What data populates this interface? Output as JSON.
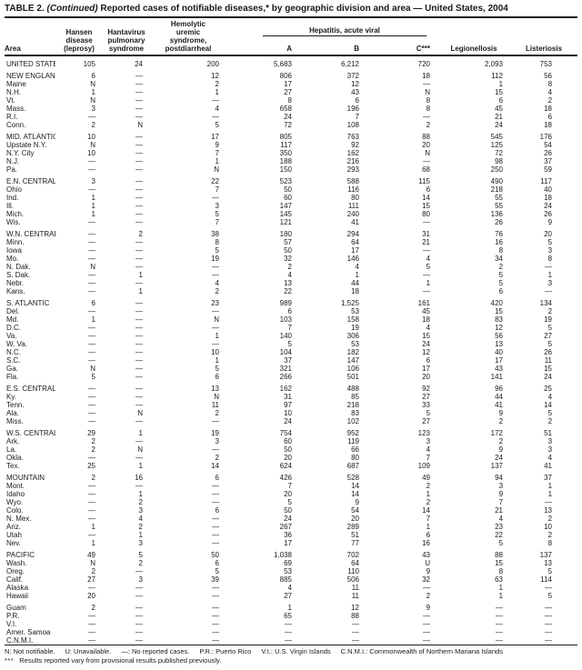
{
  "title": {
    "prefix": "TABLE 2.",
    "continued": "(Continued)",
    "rest": "Reported cases of notifiable diseases,* by geographic division and area — United States, 2004"
  },
  "header": {
    "area": "Area",
    "hansen": "Hansen disease (leprosy)",
    "hantavirus": "Hantavirus pulmonary syndrome",
    "hus": "Hemolytic uremic syndrome, postdiarrheal",
    "hepatitis_group": "Hepatitis, acute viral",
    "hep_a": "A",
    "hep_b": "B",
    "hep_c": "C***",
    "legionellosis": "Legionellosis",
    "listeriosis": "Listeriosis"
  },
  "sections": [
    {
      "rows": [
        {
          "area": "UNITED STATES",
          "values": [
            "105",
            "24",
            "200",
            "5,683",
            "6,212",
            "720",
            "2,093",
            "753"
          ]
        }
      ]
    },
    {
      "rows": [
        {
          "area": "NEW ENGLAND",
          "values": [
            "6",
            "—",
            "12",
            "806",
            "372",
            "18",
            "112",
            "56"
          ]
        },
        {
          "area": "Maine",
          "values": [
            "N",
            "—",
            "2",
            "17",
            "12",
            "—",
            "1",
            "8"
          ]
        },
        {
          "area": "N.H.",
          "values": [
            "1",
            "—",
            "1",
            "27",
            "43",
            "N",
            "15",
            "4"
          ]
        },
        {
          "area": "Vt.",
          "values": [
            "N",
            "—",
            "—",
            "8",
            "6",
            "8",
            "6",
            "2"
          ]
        },
        {
          "area": "Mass.",
          "values": [
            "3",
            "—",
            "4",
            "658",
            "196",
            "8",
            "45",
            "18"
          ]
        },
        {
          "area": "R.I.",
          "values": [
            "—",
            "—",
            "—",
            "24",
            "7",
            "—",
            "21",
            "6"
          ]
        },
        {
          "area": "Conn.",
          "values": [
            "2",
            "N",
            "5",
            "72",
            "108",
            "2",
            "24",
            "18"
          ]
        }
      ]
    },
    {
      "rows": [
        {
          "area": "MID. ATLANTIC",
          "values": [
            "10",
            "—",
            "17",
            "805",
            "763",
            "88",
            "545",
            "176"
          ]
        },
        {
          "area": "Upstate N.Y.",
          "values": [
            "N",
            "—",
            "9",
            "117",
            "92",
            "20",
            "125",
            "54"
          ]
        },
        {
          "area": "N.Y. City",
          "values": [
            "10",
            "—",
            "7",
            "350",
            "162",
            "N",
            "72",
            "26"
          ]
        },
        {
          "area": "N.J.",
          "values": [
            "—",
            "—",
            "1",
            "188",
            "216",
            "—",
            "98",
            "37"
          ]
        },
        {
          "area": "Pa.",
          "values": [
            "—",
            "—",
            "N",
            "150",
            "293",
            "68",
            "250",
            "59"
          ]
        }
      ]
    },
    {
      "rows": [
        {
          "area": "E.N. CENTRAL",
          "values": [
            "3",
            "—",
            "22",
            "523",
            "588",
            "115",
            "490",
            "117"
          ]
        },
        {
          "area": "Ohio",
          "values": [
            "—",
            "—",
            "7",
            "50",
            "116",
            "6",
            "218",
            "40"
          ]
        },
        {
          "area": "Ind.",
          "values": [
            "1",
            "—",
            "—",
            "60",
            "80",
            "14",
            "55",
            "18"
          ]
        },
        {
          "area": "Ill.",
          "values": [
            "1",
            "—",
            "3",
            "147",
            "111",
            "15",
            "55",
            "24"
          ]
        },
        {
          "area": "Mich.",
          "values": [
            "1",
            "—",
            "5",
            "145",
            "240",
            "80",
            "136",
            "26"
          ]
        },
        {
          "area": "Wis.",
          "values": [
            "—",
            "—",
            "7",
            "121",
            "41",
            "—",
            "26",
            "9"
          ]
        }
      ]
    },
    {
      "rows": [
        {
          "area": "W.N. CENTRAL",
          "values": [
            "—",
            "2",
            "38",
            "180",
            "294",
            "31",
            "76",
            "20"
          ]
        },
        {
          "area": "Minn.",
          "values": [
            "—",
            "—",
            "8",
            "57",
            "64",
            "21",
            "16",
            "5"
          ]
        },
        {
          "area": "Iowa",
          "values": [
            "—",
            "—",
            "5",
            "50",
            "17",
            "—",
            "8",
            "3"
          ]
        },
        {
          "area": "Mo.",
          "values": [
            "—",
            "—",
            "19",
            "32",
            "146",
            "4",
            "34",
            "8"
          ]
        },
        {
          "area": "N. Dak.",
          "values": [
            "N",
            "—",
            "—",
            "2",
            "4",
            "5",
            "2",
            "—"
          ]
        },
        {
          "area": "S. Dak.",
          "values": [
            "—",
            "1",
            "—",
            "4",
            "1",
            "—",
            "5",
            "1"
          ]
        },
        {
          "area": "Nebr.",
          "values": [
            "—",
            "—",
            "4",
            "13",
            "44",
            "1",
            "5",
            "3"
          ]
        },
        {
          "area": "Kans.",
          "values": [
            "—",
            "1",
            "2",
            "22",
            "18",
            "—",
            "6",
            "—"
          ]
        }
      ]
    },
    {
      "rows": [
        {
          "area": "S. ATLANTIC",
          "values": [
            "6",
            "—",
            "23",
            "989",
            "1,525",
            "161",
            "420",
            "134"
          ]
        },
        {
          "area": "Del.",
          "values": [
            "—",
            "—",
            "—",
            "6",
            "53",
            "45",
            "15",
            "2"
          ]
        },
        {
          "area": "Md.",
          "values": [
            "1",
            "—",
            "N",
            "103",
            "158",
            "18",
            "83",
            "19"
          ]
        },
        {
          "area": "D.C.",
          "values": [
            "—",
            "—",
            "—",
            "7",
            "19",
            "4",
            "12",
            "5"
          ]
        },
        {
          "area": "Va.",
          "values": [
            "—",
            "—",
            "1",
            "140",
            "306",
            "15",
            "56",
            "27"
          ]
        },
        {
          "area": "W. Va.",
          "values": [
            "—",
            "—",
            "—",
            "5",
            "53",
            "24",
            "13",
            "5"
          ]
        },
        {
          "area": "N.C.",
          "values": [
            "—",
            "—",
            "10",
            "104",
            "182",
            "12",
            "40",
            "26"
          ]
        },
        {
          "area": "S.C.",
          "values": [
            "—",
            "—",
            "1",
            "37",
            "147",
            "6",
            "17",
            "11"
          ]
        },
        {
          "area": "Ga.",
          "values": [
            "N",
            "—",
            "5",
            "321",
            "106",
            "17",
            "43",
            "15"
          ]
        },
        {
          "area": "Fla.",
          "values": [
            "5",
            "—",
            "6",
            "266",
            "501",
            "20",
            "141",
            "24"
          ]
        }
      ]
    },
    {
      "rows": [
        {
          "area": "E.S. CENTRAL",
          "values": [
            "—",
            "—",
            "13",
            "162",
            "488",
            "92",
            "96",
            "25"
          ]
        },
        {
          "area": "Ky.",
          "values": [
            "—",
            "—",
            "N",
            "31",
            "85",
            "27",
            "44",
            "4"
          ]
        },
        {
          "area": "Tenn.",
          "values": [
            "—",
            "—",
            "11",
            "97",
            "218",
            "33",
            "41",
            "14"
          ]
        },
        {
          "area": "Ala.",
          "values": [
            "—",
            "N",
            "2",
            "10",
            "83",
            "5",
            "9",
            "5"
          ]
        },
        {
          "area": "Miss.",
          "values": [
            "—",
            "—",
            "—",
            "24",
            "102",
            "27",
            "2",
            "2"
          ]
        }
      ]
    },
    {
      "rows": [
        {
          "area": "W.S. CENTRAL",
          "values": [
            "29",
            "1",
            "19",
            "754",
            "952",
            "123",
            "172",
            "51"
          ]
        },
        {
          "area": "Ark.",
          "values": [
            "2",
            "—",
            "3",
            "60",
            "119",
            "3",
            "2",
            "3"
          ]
        },
        {
          "area": "La.",
          "values": [
            "2",
            "N",
            "—",
            "50",
            "66",
            "4",
            "9",
            "3"
          ]
        },
        {
          "area": "Okla.",
          "values": [
            "—",
            "—",
            "2",
            "20",
            "80",
            "7",
            "24",
            "4"
          ]
        },
        {
          "area": "Tex.",
          "values": [
            "25",
            "1",
            "14",
            "624",
            "687",
            "109",
            "137",
            "41"
          ]
        }
      ]
    },
    {
      "rows": [
        {
          "area": "MOUNTAIN",
          "values": [
            "2",
            "16",
            "6",
            "426",
            "528",
            "49",
            "94",
            "37"
          ]
        },
        {
          "area": "Mont.",
          "values": [
            "—",
            "—",
            "—",
            "7",
            "14",
            "2",
            "3",
            "1"
          ]
        },
        {
          "area": "Idaho",
          "values": [
            "—",
            "1",
            "—",
            "20",
            "14",
            "1",
            "9",
            "1"
          ]
        },
        {
          "area": "Wyo.",
          "values": [
            "—",
            "2",
            "—",
            "5",
            "9",
            "2",
            "7",
            "—"
          ]
        },
        {
          "area": "Colo.",
          "values": [
            "—",
            "3",
            "6",
            "50",
            "54",
            "14",
            "21",
            "13"
          ]
        },
        {
          "area": "N. Mex.",
          "values": [
            "—",
            "4",
            "—",
            "24",
            "20",
            "7",
            "4",
            "2"
          ]
        },
        {
          "area": "Ariz.",
          "values": [
            "1",
            "2",
            "—",
            "267",
            "289",
            "1",
            "23",
            "10"
          ]
        },
        {
          "area": "Utah",
          "values": [
            "—",
            "1",
            "—",
            "36",
            "51",
            "6",
            "22",
            "2"
          ]
        },
        {
          "area": "Nev.",
          "values": [
            "1",
            "3",
            "—",
            "17",
            "77",
            "16",
            "5",
            "8"
          ]
        }
      ]
    },
    {
      "rows": [
        {
          "area": "PACIFIC",
          "values": [
            "49",
            "5",
            "50",
            "1,038",
            "702",
            "43",
            "88",
            "137"
          ]
        },
        {
          "area": "Wash.",
          "values": [
            "N",
            "2",
            "6",
            "69",
            "64",
            "U",
            "15",
            "13"
          ]
        },
        {
          "area": "Oreg.",
          "values": [
            "2",
            "—",
            "5",
            "53",
            "110",
            "9",
            "8",
            "5"
          ]
        },
        {
          "area": "Calif.",
          "values": [
            "27",
            "3",
            "39",
            "885",
            "506",
            "32",
            "63",
            "114"
          ]
        },
        {
          "area": "Alaska",
          "values": [
            "—",
            "—",
            "—",
            "4",
            "11",
            "—",
            "1",
            "—"
          ]
        },
        {
          "area": "Hawaii",
          "values": [
            "20",
            "—",
            "—",
            "27",
            "11",
            "2",
            "1",
            "5"
          ]
        }
      ]
    },
    {
      "rows": [
        {
          "area": "Guam",
          "values": [
            "2",
            "—",
            "—",
            "1",
            "12",
            "9",
            "—",
            "—"
          ]
        },
        {
          "area": "P.R.",
          "values": [
            "—",
            "—",
            "—",
            "65",
            "88",
            "—",
            "—",
            "—"
          ]
        },
        {
          "area": "V.I.",
          "values": [
            "—",
            "—",
            "—",
            "—",
            "—",
            "—",
            "—",
            "—"
          ]
        },
        {
          "area": "Amer. Samoa",
          "values": [
            "—",
            "—",
            "—",
            "—",
            "—",
            "—",
            "—",
            "—"
          ]
        },
        {
          "area": "C.N.M.I.",
          "values": [
            "—",
            "—",
            "—",
            "—",
            "—",
            "—",
            "—",
            "—"
          ]
        }
      ]
    }
  ],
  "footer": {
    "legend_items": [
      "N: Not notifiable.",
      "U: Unavailable.",
      "—: No reported cases.",
      "P.R.: Puerto Rico",
      "V.I.: U.S. Virgin Islands",
      "C.N.M.I.: Commonwealth of Northern Mariana Islands"
    ],
    "note_symbol": "***",
    "note_text": "Results reported vary from provisional results published previously."
  },
  "colors": {
    "text": "#1a1a1a",
    "background": "#ffffff"
  }
}
